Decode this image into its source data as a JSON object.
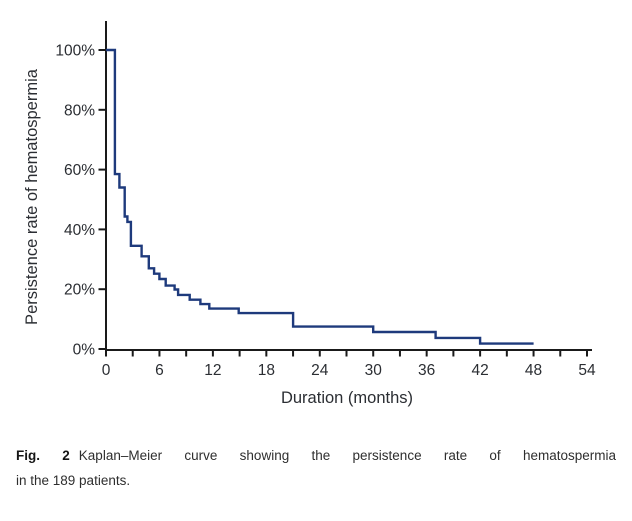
{
  "figure": {
    "caption": {
      "label": "Fig. 2",
      "line1": "Kaplan–Meier curve showing the persistence rate of hematospermia",
      "line2": "in the 189 patients."
    }
  },
  "chart_data": {
    "type": "line",
    "subtype": "kaplan-meier-step-curve",
    "title": "",
    "xlabel": "Duration (months)",
    "ylabel": "Persistence rate of hematospermia",
    "xlim": [
      0,
      54
    ],
    "ylim": [
      0,
      100
    ],
    "x_major_ticks": [
      0,
      6,
      12,
      18,
      24,
      30,
      36,
      42,
      48,
      54
    ],
    "x_minor_tick_interval": 3,
    "y_ticks": [
      0,
      20,
      40,
      60,
      80,
      100
    ],
    "y_tick_suffix": "%",
    "grid": false,
    "legend": "none",
    "colors": {
      "curve": "#1e3a7c",
      "axis": "#1a1a1a",
      "tick_text": "#2b2e33"
    },
    "series": [
      {
        "name": "Persistence rate of hematospermia",
        "step": "post",
        "points_month_percent": [
          [
            0,
            100
          ],
          [
            1.0,
            58.5
          ],
          [
            1.5,
            54.0
          ],
          [
            2.1,
            44.3
          ],
          [
            2.4,
            42.5
          ],
          [
            2.8,
            34.5
          ],
          [
            4.0,
            31.0
          ],
          [
            4.8,
            27.0
          ],
          [
            5.4,
            25.2
          ],
          [
            6.0,
            23.4
          ],
          [
            6.7,
            21.2
          ],
          [
            7.7,
            19.9
          ],
          [
            8.1,
            18.1
          ],
          [
            9.4,
            16.5
          ],
          [
            10.6,
            15.0
          ],
          [
            11.6,
            13.5
          ],
          [
            14.9,
            12.0
          ],
          [
            21.0,
            7.5
          ],
          [
            30.0,
            5.7
          ],
          [
            37.0,
            3.7
          ],
          [
            42.0,
            1.8
          ],
          [
            48.0,
            1.8
          ]
        ]
      }
    ]
  }
}
